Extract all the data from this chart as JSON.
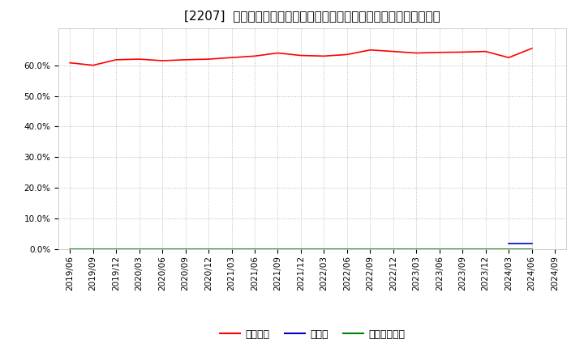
{
  "title": "[2207]  自己資本、のれん、繰延税金資産の総資産に対する比率の推移",
  "x_labels": [
    "2019/06",
    "2019/09",
    "2019/12",
    "2020/03",
    "2020/06",
    "2020/09",
    "2020/12",
    "2021/03",
    "2021/06",
    "2021/09",
    "2021/12",
    "2022/03",
    "2022/06",
    "2022/09",
    "2022/12",
    "2023/03",
    "2023/06",
    "2023/09",
    "2023/12",
    "2024/03",
    "2024/06",
    "2024/09"
  ],
  "equity_ratio": [
    60.8,
    60.0,
    61.8,
    62.0,
    61.5,
    61.8,
    62.0,
    62.5,
    63.0,
    64.0,
    63.2,
    63.0,
    63.5,
    65.0,
    64.5,
    64.0,
    64.2,
    64.3,
    64.5,
    62.5,
    65.5,
    null
  ],
  "goodwill_ratio": [
    null,
    null,
    null,
    null,
    null,
    null,
    null,
    null,
    null,
    null,
    null,
    null,
    null,
    null,
    null,
    null,
    null,
    null,
    null,
    1.8,
    1.8,
    null
  ],
  "deferred_tax_ratio": [
    0.0,
    0.0,
    0.0,
    0.0,
    0.0,
    0.0,
    0.0,
    0.0,
    0.0,
    0.0,
    0.0,
    0.0,
    0.0,
    0.0,
    0.0,
    0.0,
    0.0,
    0.0,
    0.0,
    0.0,
    0.0,
    null
  ],
  "equity_color": "#ff0000",
  "goodwill_color": "#0000cc",
  "deferred_tax_color": "#008000",
  "bg_color": "#ffffff",
  "plot_bg_color": "#ffffff",
  "grid_color": "#999999",
  "ylim": [
    0.0,
    0.72
  ],
  "yticks": [
    0.0,
    0.1,
    0.2,
    0.3,
    0.4,
    0.5,
    0.6
  ],
  "legend_labels": [
    "自己資本",
    "のれん",
    "繰延税金資産"
  ],
  "title_fontsize": 11,
  "axis_fontsize": 7.5,
  "legend_fontsize": 9
}
